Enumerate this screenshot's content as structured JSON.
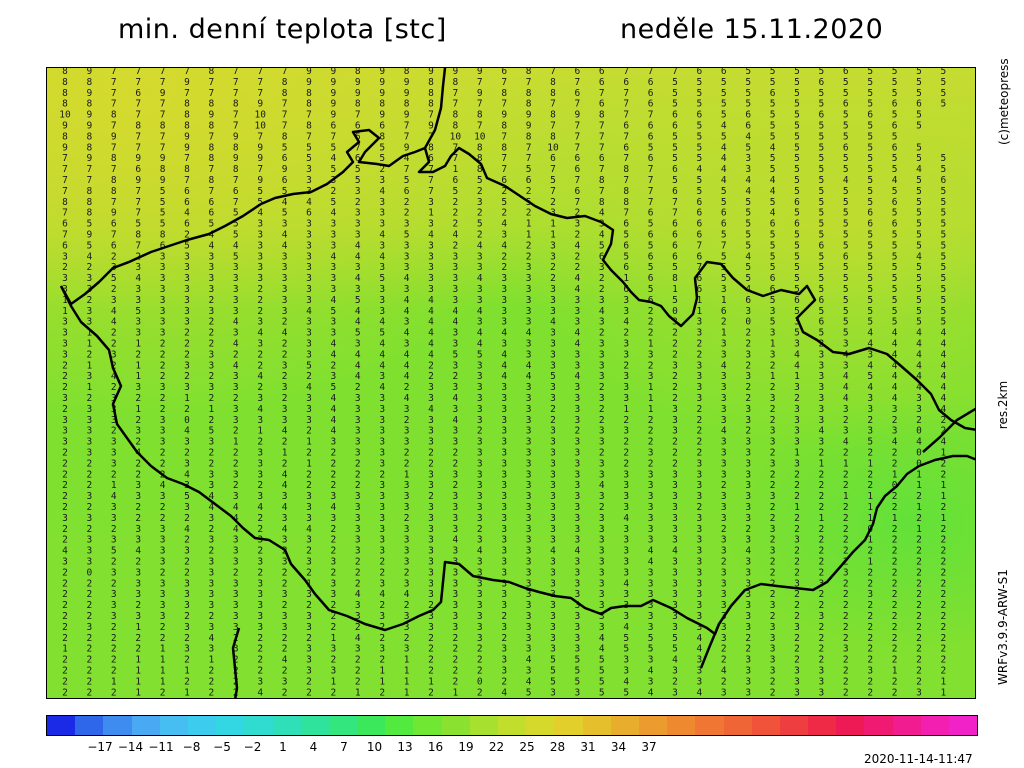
{
  "title_left": "min. denní teplota [stc]",
  "title_right": "neděle 15.11.2020",
  "side_brand": "(c)meteopress",
  "side_res": "res.2km",
  "side_model": "WRFv3.9.9-ARW-S1",
  "timestamp": "2020-11-14-11:47",
  "colorbar": {
    "ticks": [
      "−17",
      "−14",
      "−11",
      "−8",
      "−5",
      "−2",
      "1",
      "4",
      "7",
      "10",
      "13",
      "16",
      "19",
      "22",
      "25",
      "28",
      "31",
      "34",
      "37"
    ],
    "colors": [
      "#1a2ae6",
      "#2f67ea",
      "#3f8cf0",
      "#4aa9f3",
      "#46bef2",
      "#3cccee",
      "#33d6e3",
      "#30dccf",
      "#2fdfb8",
      "#2fe39c",
      "#33e67d",
      "#3be85c",
      "#52ea3e",
      "#6fe733",
      "#8ae12f",
      "#a7e02f",
      "#c1de2d",
      "#d5d92b",
      "#e2cf2b",
      "#e6bf2c",
      "#e9ad2d",
      "#ec9b2e",
      "#ee8930",
      "#ef7733",
      "#f06536",
      "#f0533a",
      "#ef3e3f",
      "#ee2a46",
      "#ee1a55",
      "#f01a73",
      "#f21c91",
      "#f31fb0",
      "#f123c8"
    ]
  },
  "map": {
    "text_color": "#1a1a1a",
    "grid_rows": [
      "8977778777998989996876677766555565555",
      "8877797778999998877787666555555655555",
      "8976977778899998798886776555565555555",
      "8877788897898888777877676555555565665",
      "10987789710779799788998987766565565655",
      "9978888710786667987897776665465555565",
      "8897797978776877101078877765554555555",
      "9877798895557598788710776555454556565",
      "7989978996546546787766676554355555555",
      "7776887879355277187576787644355555545",
      "7789978796335357656657877554445545456",
      "7887567655323467522276787655445555555",
      "8877566754452323235527887765556555655",
      "7897546545643321222232476766545556555",
      "6565565533333333254113365666566556655",
      "7978824534333454423112456665555555555",
      "6567654434334333244234565677555655555",
      "3422333533344433332232656665455565545",
      "2233333333333333332322365575555555555",
      "3354333333334543343324216865565555555",
      "3323333323333333333334265163465555555",
      "1233332323345344333333336511656655555",
      "1345333323454344443333432016335555555",
      "3343332432334434433343342332053655555",
      "3123322344335544344434222231235554444",
      "3121222432343434343334331223213234444",
      "3232223222344444554333333223334343444",
      "2121233423524442334433322334224334444",
      "2341222342234342234454333233311345444",
      "2123333323452423333333231233223344444",
      "3232212232343343433333331233232343434",
      "2331221343343334333323211323323333334",
      "3332302333343323433323222323323322222",
      "3323345214243333323332332324233433302",
      "3332333122133333333333322223333345444",
      "2334222231223322233333223223321222201",
      "2232232232122322233333322233333111202",
      "2222243334222213333333333333322222112",
      "2213433224222333233333433332322222011",
      "2343354333333332333333333333332211221",
      "2232234444343333333333233323321221212",
      "3332223423333323333333343333322121121",
      "2223342424423333323333333332232220212",
      "2333323333323333433333333333323221222",
      "4354332322223333343344334433432222222",
      "3322323333332233333333334332322221222",
      "2033223222222223333333333333322232222",
      "2223333332132333333333343333323322222",
      "2233333333334443333333333333322223222",
      "2232333332223222333333333333332222222",
      "2233322333323333332333333333322322222",
      "2321233333322233333333343333333222222",
      "2222224222214222232333455543232222222",
      "1222133322333332223333455542232232222",
      "2221121224322212223455533432332222222",
      "2221112222332112223355534334333323122",
      "2211122233212111202455543232323322221",
      "2221212242221212124533554343323322231"
    ]
  }
}
